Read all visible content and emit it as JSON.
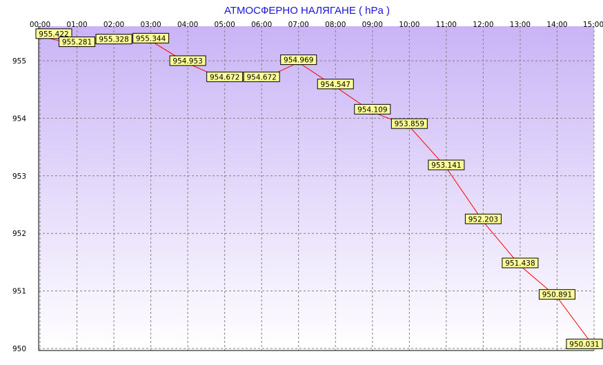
{
  "colors": {
    "title": "#1a14d6",
    "line": "#ff0000",
    "marker_fill": "#cc0000",
    "marker_stroke": "#550000",
    "label_bg": "#ffff99",
    "label_border": "#000000",
    "grid": "#808080",
    "plot_bg_top": "#c9b4f6",
    "plot_bg_bottom": "#ffffff"
  },
  "chart_data": {
    "type": "line",
    "title": "АТМОСФЕРНО НАЛЯГАНЕ  ( hPa )",
    "xlabel": "",
    "ylabel": "",
    "grid": true,
    "legend": "none",
    "x": [
      "00:00",
      "01:00",
      "02:00",
      "03:00",
      "04:00",
      "05:00",
      "06:00",
      "07:00",
      "08:00",
      "09:00",
      "10:00",
      "11:00",
      "12:00",
      "13:00",
      "14:00",
      "15:00"
    ],
    "y_ticks": [
      950,
      951,
      952,
      953,
      954,
      955
    ],
    "ylim": [
      950,
      955.6
    ],
    "series": [
      {
        "values": [
          955.422,
          955.281,
          955.328,
          955.344,
          954.953,
          954.672,
          954.672,
          954.969,
          954.547,
          954.109,
          953.859,
          953.141,
          952.203,
          951.438,
          950.891,
          950.031
        ],
        "labels": [
          "955.422",
          "955.281",
          "955.328",
          "955.344",
          "954.953",
          "954.672",
          "954.672",
          "954.969",
          "954.547",
          "954.109",
          "953.859",
          "953.141",
          "952.203",
          "951.438",
          "950.891",
          "950.031"
        ]
      }
    ]
  }
}
